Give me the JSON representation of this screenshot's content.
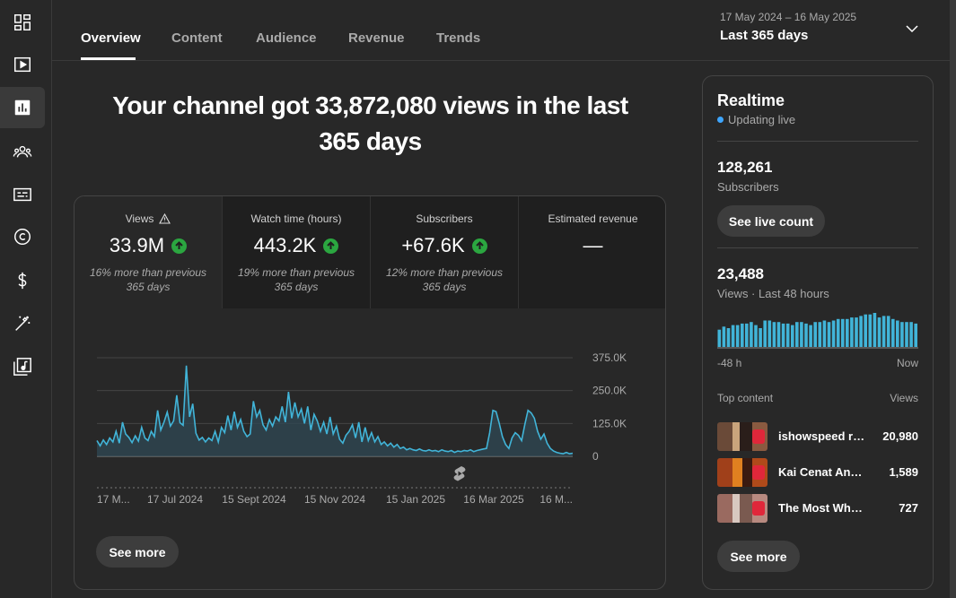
{
  "rail": {
    "items": [
      {
        "icon": "dashboard-icon"
      },
      {
        "icon": "content-icon"
      },
      {
        "icon": "analytics-icon",
        "active": true
      },
      {
        "icon": "community-icon"
      },
      {
        "icon": "subtitles-icon"
      },
      {
        "icon": "copyright-icon"
      },
      {
        "icon": "earn-icon"
      },
      {
        "icon": "customization-icon"
      },
      {
        "icon": "audio-library-icon"
      }
    ]
  },
  "tabs": {
    "items": [
      "Overview",
      "Content",
      "Audience",
      "Revenue",
      "Trends"
    ],
    "active": "Overview"
  },
  "date_range": {
    "range": "17 May 2024 – 16 May 2025",
    "label": "Last 365 days"
  },
  "headline": "Your channel got 33,872,080 views in the last 365 days",
  "metrics": [
    {
      "label": "Views",
      "value": "33.9M",
      "note": "16% more than previous 365 days",
      "trend": "up",
      "warning": true
    },
    {
      "label": "Watch time (hours)",
      "value": "443.2K",
      "note": "19% more than previous 365 days",
      "trend": "up"
    },
    {
      "label": "Subscribers",
      "value": "+67.6K",
      "note": "12% more than previous 365 days",
      "trend": "up"
    },
    {
      "label": "Estimated revenue",
      "value": "—",
      "note": ""
    }
  ],
  "chart_data": {
    "type": "area",
    "x_tick_labels": [
      "17 M...",
      "17 Jul 2024",
      "15 Sept 2024",
      "15 Nov 2024",
      "15 Jan 2025",
      "16 Mar 2025",
      "16 M..."
    ],
    "y_tick_labels": [
      "375.0K",
      "250.0K",
      "125.0K",
      "0"
    ],
    "ylim": [
      0,
      375000
    ],
    "series": [
      {
        "values": [
          60000,
          40000,
          62000,
          45000,
          70000,
          55000,
          95000,
          50000,
          130000,
          85000,
          72000,
          52000,
          78000,
          58000,
          110000,
          70000,
          60000,
          95000,
          75000,
          175000,
          100000,
          130000,
          168000,
          115000,
          135000,
          232000,
          128000,
          118000,
          345000,
          150000,
          200000,
          88000,
          62000,
          72000,
          55000,
          70000,
          60000,
          95000,
          55000,
          110000,
          90000,
          155000,
          100000,
          170000,
          110000,
          140000,
          95000,
          75000,
          85000,
          210000,
          150000,
          175000,
          120000,
          100000,
          140000,
          115000,
          150000,
          135000,
          190000,
          130000,
          245000,
          145000,
          205000,
          150000,
          180000,
          125000,
          190000,
          100000,
          160000,
          135000,
          95000,
          130000,
          85000,
          150000,
          85000,
          115000,
          65000,
          50000,
          80000,
          95000,
          120000,
          70000,
          130000,
          55000,
          110000,
          60000,
          90000,
          55000,
          75000,
          45000,
          55000,
          40000,
          50000,
          35000,
          45000,
          30000,
          35000,
          25000,
          30000,
          25000,
          22000,
          28000,
          22000,
          20000,
          25000,
          20000,
          22000,
          18000,
          25000,
          20000,
          18000,
          22000,
          15000,
          20000,
          18000,
          22000,
          20000,
          25000,
          18000,
          22000,
          25000,
          28000,
          30000,
          90000,
          175000,
          170000,
          125000,
          75000,
          45000,
          30000,
          70000,
          90000,
          80000,
          60000,
          120000,
          175000,
          165000,
          145000,
          95000,
          65000,
          85000,
          50000,
          30000,
          20000,
          15000,
          12000,
          10000,
          15000,
          10000,
          12000
        ]
      }
    ],
    "marker": "shorts-icon"
  },
  "see_more_label": "See more",
  "realtime": {
    "title": "Realtime",
    "status": "Updating live",
    "subscribers_value": "128,261",
    "subscribers_label": "Subscribers",
    "live_count_button": "See live count",
    "views_value": "23,488",
    "views_label": "Views · Last 48 hours",
    "bars": [
      45,
      55,
      50,
      60,
      60,
      65,
      65,
      70,
      60,
      50,
      75,
      75,
      70,
      70,
      65,
      65,
      60,
      70,
      70,
      65,
      60,
      70,
      70,
      75,
      70,
      75,
      80,
      80,
      80,
      85,
      85,
      90,
      95,
      95,
      100,
      85,
      90,
      90,
      80,
      75,
      70,
      70,
      70,
      65
    ],
    "axis_left": "-48 h",
    "axis_right": "Now",
    "top_content_label": "Top content",
    "top_views_label": "Views",
    "top_content": [
      {
        "title": "ishowspeed re...",
        "views": "20,980"
      },
      {
        "title": "Kai Cenat And ...",
        "views": "1,589"
      },
      {
        "title": "The Most Wholes...",
        "views": "727"
      }
    ],
    "see_more_label": "See more"
  },
  "colors": {
    "accent": "#3ea6ff",
    "chart_line": "#41b4d8",
    "trend_up": "#2ba640",
    "background": "#282828"
  }
}
